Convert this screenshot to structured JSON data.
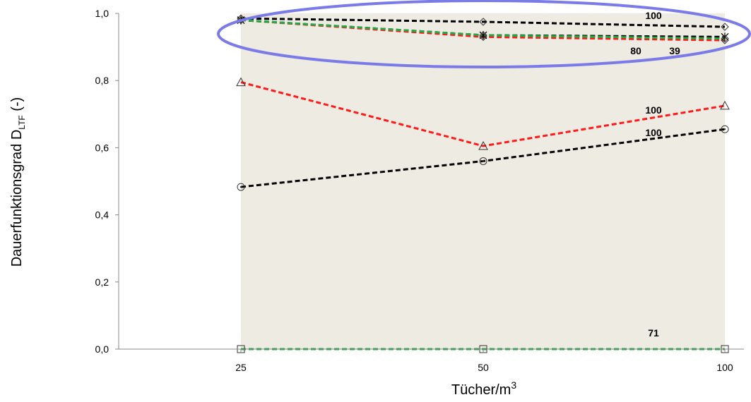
{
  "chart_data": {
    "type": "line",
    "categories": [
      "25",
      "50",
      "100"
    ],
    "xlabel": "Tücher/m",
    "xlabel_sup": "3",
    "ylabel": "Dauerfunktionsgrad D",
    "ylabel_sub": "LTF",
    "ylabel_suffix": " (-)",
    "ylim": [
      0,
      1.0
    ],
    "yticks": [
      "0,0",
      "0,2",
      "0,4",
      "0,6",
      "0,8",
      "1,0"
    ],
    "grid": false,
    "shaded_region": {
      "color": "#eeebe2",
      "x_from": "25",
      "x_to": "100"
    },
    "highlight_ellipse": {
      "color": "#7b7be8"
    },
    "series": [
      {
        "values": [
          0.985,
          0.975,
          0.96
        ],
        "color": "#000000",
        "marker": "diamond"
      },
      {
        "values": [
          0.98,
          0.935,
          0.93
        ],
        "color": "#000000",
        "marker": "asterisk"
      },
      {
        "values": [
          0.98,
          0.93,
          0.92
        ],
        "color": "#ff1a1a",
        "marker": "diamond"
      },
      {
        "values": [
          0.98,
          0.935,
          0.925
        ],
        "color": "#22aa44",
        "marker": "diamond"
      },
      {
        "values": [
          0.795,
          0.605,
          0.725
        ],
        "color": "#ff1a1a",
        "marker": "triangle"
      },
      {
        "values": [
          0.483,
          0.56,
          0.655
        ],
        "color": "#000000",
        "marker": "circle"
      },
      {
        "values": [
          0.0,
          0.0,
          0.0
        ],
        "color": "#22aa44",
        "marker": "square"
      }
    ],
    "annotations": [
      {
        "text": "100"
      },
      {
        "text": "80"
      },
      {
        "text": "39"
      },
      {
        "text": "100"
      },
      {
        "text": "100"
      },
      {
        "text": "71"
      }
    ]
  }
}
